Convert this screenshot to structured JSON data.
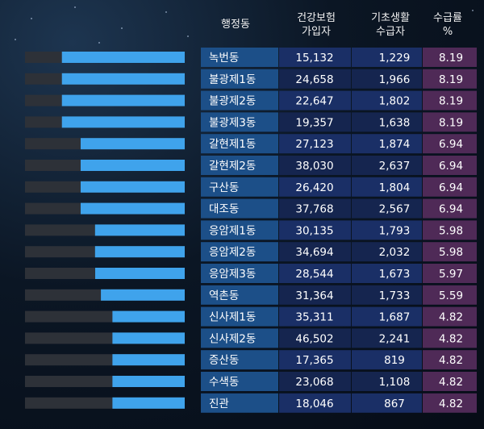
{
  "chart_data": {
    "type": "table",
    "columns": [
      "행정동",
      "건강보험\n가입자",
      "기초생활\n수급자",
      "수급률\n%"
    ],
    "rows": [
      {
        "dong": "녹번동",
        "insured": "15,132",
        "recipients": "1,229",
        "rate": "8.19"
      },
      {
        "dong": "불광제1동",
        "insured": "24,658",
        "recipients": "1,966",
        "rate": "8.19"
      },
      {
        "dong": "불광제2동",
        "insured": "22,647",
        "recipients": "1,802",
        "rate": "8.19"
      },
      {
        "dong": "불광제3동",
        "insured": "19,357",
        "recipients": "1,638",
        "rate": "8.19"
      },
      {
        "dong": "갈현제1동",
        "insured": "27,123",
        "recipients": "1,874",
        "rate": "6.94"
      },
      {
        "dong": "갈현제2동",
        "insured": "38,030",
        "recipients": "2,637",
        "rate": "6.94"
      },
      {
        "dong": "구산동",
        "insured": "26,420",
        "recipients": "1,804",
        "rate": "6.94"
      },
      {
        "dong": "대조동",
        "insured": "37,768",
        "recipients": "2,567",
        "rate": "6.94"
      },
      {
        "dong": "응암제1동",
        "insured": "30,135",
        "recipients": "1,793",
        "rate": "5.98"
      },
      {
        "dong": "응암제2동",
        "insured": "34,694",
        "recipients": "2,032",
        "rate": "5.98"
      },
      {
        "dong": "응암제3동",
        "insured": "28,544",
        "recipients": "1,673",
        "rate": "5.97"
      },
      {
        "dong": "역촌동",
        "insured": "31,364",
        "recipients": "1,733",
        "rate": "5.59"
      },
      {
        "dong": "신사제1동",
        "insured": "35,311",
        "recipients": "1,687",
        "rate": "4.82"
      },
      {
        "dong": "신사제2동",
        "insured": "46,502",
        "recipients": "2,241",
        "rate": "4.82"
      },
      {
        "dong": "증산동",
        "insured": "17,365",
        "recipients": "819",
        "rate": "4.82"
      },
      {
        "dong": "수색동",
        "insured": "23,068",
        "recipients": "1,108",
        "rate": "4.82"
      },
      {
        "dong": "진관",
        "insured": "18,046",
        "recipients": "867",
        "rate": "4.82"
      }
    ],
    "bar_max": 10.65,
    "colors": {
      "bar_fill": "#3fa3ec",
      "bar_track": "#2d3138",
      "dong_cell": "#1c4f88",
      "number_cell_a": "#1a2f66",
      "number_cell_b": "#15254f",
      "rate_cell": "#4f2a57"
    }
  }
}
